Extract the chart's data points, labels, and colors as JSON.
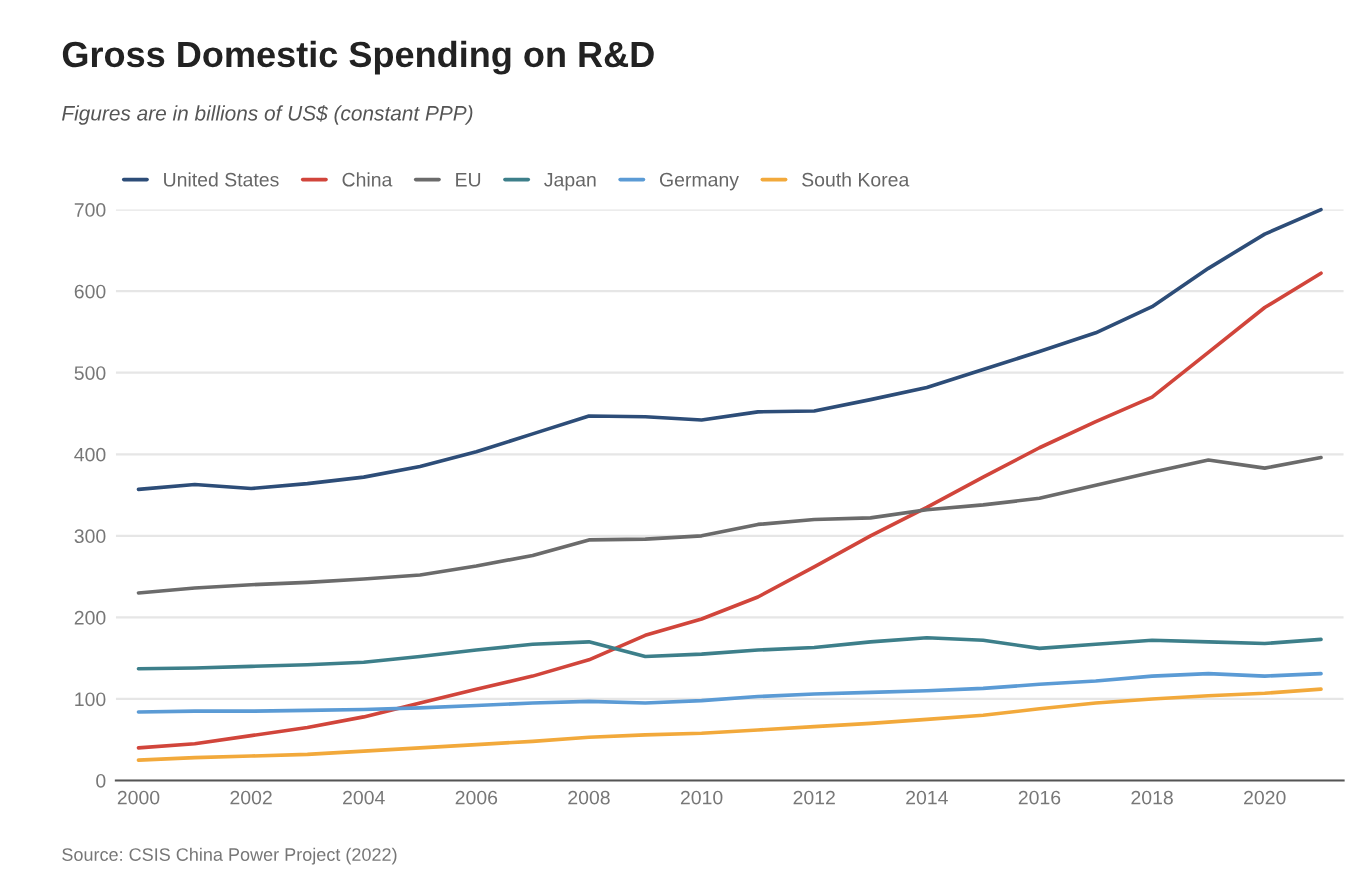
{
  "chart_data": {
    "type": "line",
    "title": "Gross Domestic Spending on R&D",
    "subtitle": "Figures are in billions of US$ (constant PPP)",
    "x": [
      2000,
      2001,
      2002,
      2003,
      2004,
      2005,
      2006,
      2007,
      2008,
      2009,
      2010,
      2011,
      2012,
      2013,
      2014,
      2015,
      2016,
      2017,
      2018,
      2019,
      2020,
      2021
    ],
    "series": [
      {
        "name": "United States",
        "color": "#2d4d78",
        "values": [
          357,
          363,
          358,
          364,
          372,
          385,
          403,
          425,
          447,
          446,
          442,
          452,
          453,
          467,
          482,
          504,
          526,
          549,
          581,
          628,
          670,
          700
        ]
      },
      {
        "name": "China",
        "color": "#d1453b",
        "values": [
          40,
          45,
          55,
          65,
          78,
          95,
          112,
          128,
          148,
          178,
          198,
          225,
          262,
          300,
          335,
          372,
          408,
          440,
          470,
          525,
          580,
          622
        ]
      },
      {
        "name": "EU",
        "color": "#6b6b6b",
        "values": [
          230,
          236,
          240,
          243,
          247,
          252,
          263,
          276,
          295,
          296,
          300,
          314,
          320,
          322,
          332,
          338,
          346,
          362,
          378,
          393,
          383,
          396
        ]
      },
      {
        "name": "Japan",
        "color": "#3d7f8a",
        "values": [
          137,
          138,
          140,
          142,
          145,
          152,
          160,
          167,
          170,
          152,
          155,
          160,
          163,
          170,
          175,
          172,
          162,
          167,
          172,
          170,
          168,
          173
        ]
      },
      {
        "name": "Germany",
        "color": "#5b9bd5",
        "values": [
          84,
          85,
          85,
          86,
          87,
          89,
          92,
          95,
          97,
          95,
          98,
          103,
          106,
          108,
          110,
          113,
          118,
          122,
          128,
          131,
          128,
          131
        ]
      },
      {
        "name": "South Korea",
        "color": "#f2a93b",
        "values": [
          25,
          28,
          30,
          32,
          36,
          40,
          44,
          48,
          53,
          56,
          58,
          62,
          66,
          70,
          75,
          80,
          88,
          95,
          100,
          104,
          107,
          112
        ]
      }
    ],
    "xlim": [
      1999.6,
      2021.4
    ],
    "xticks": [
      2000,
      2002,
      2004,
      2006,
      2008,
      2010,
      2012,
      2014,
      2016,
      2018,
      2020
    ],
    "ylim": [
      0,
      700
    ],
    "yticks": [
      0,
      100,
      200,
      300,
      400,
      500,
      600,
      700
    ],
    "grid": "y",
    "legend": "top",
    "marker": "none",
    "line_style": "solid",
    "annotations": [
      "Source: CSIS China Power Project (2022)"
    ]
  }
}
